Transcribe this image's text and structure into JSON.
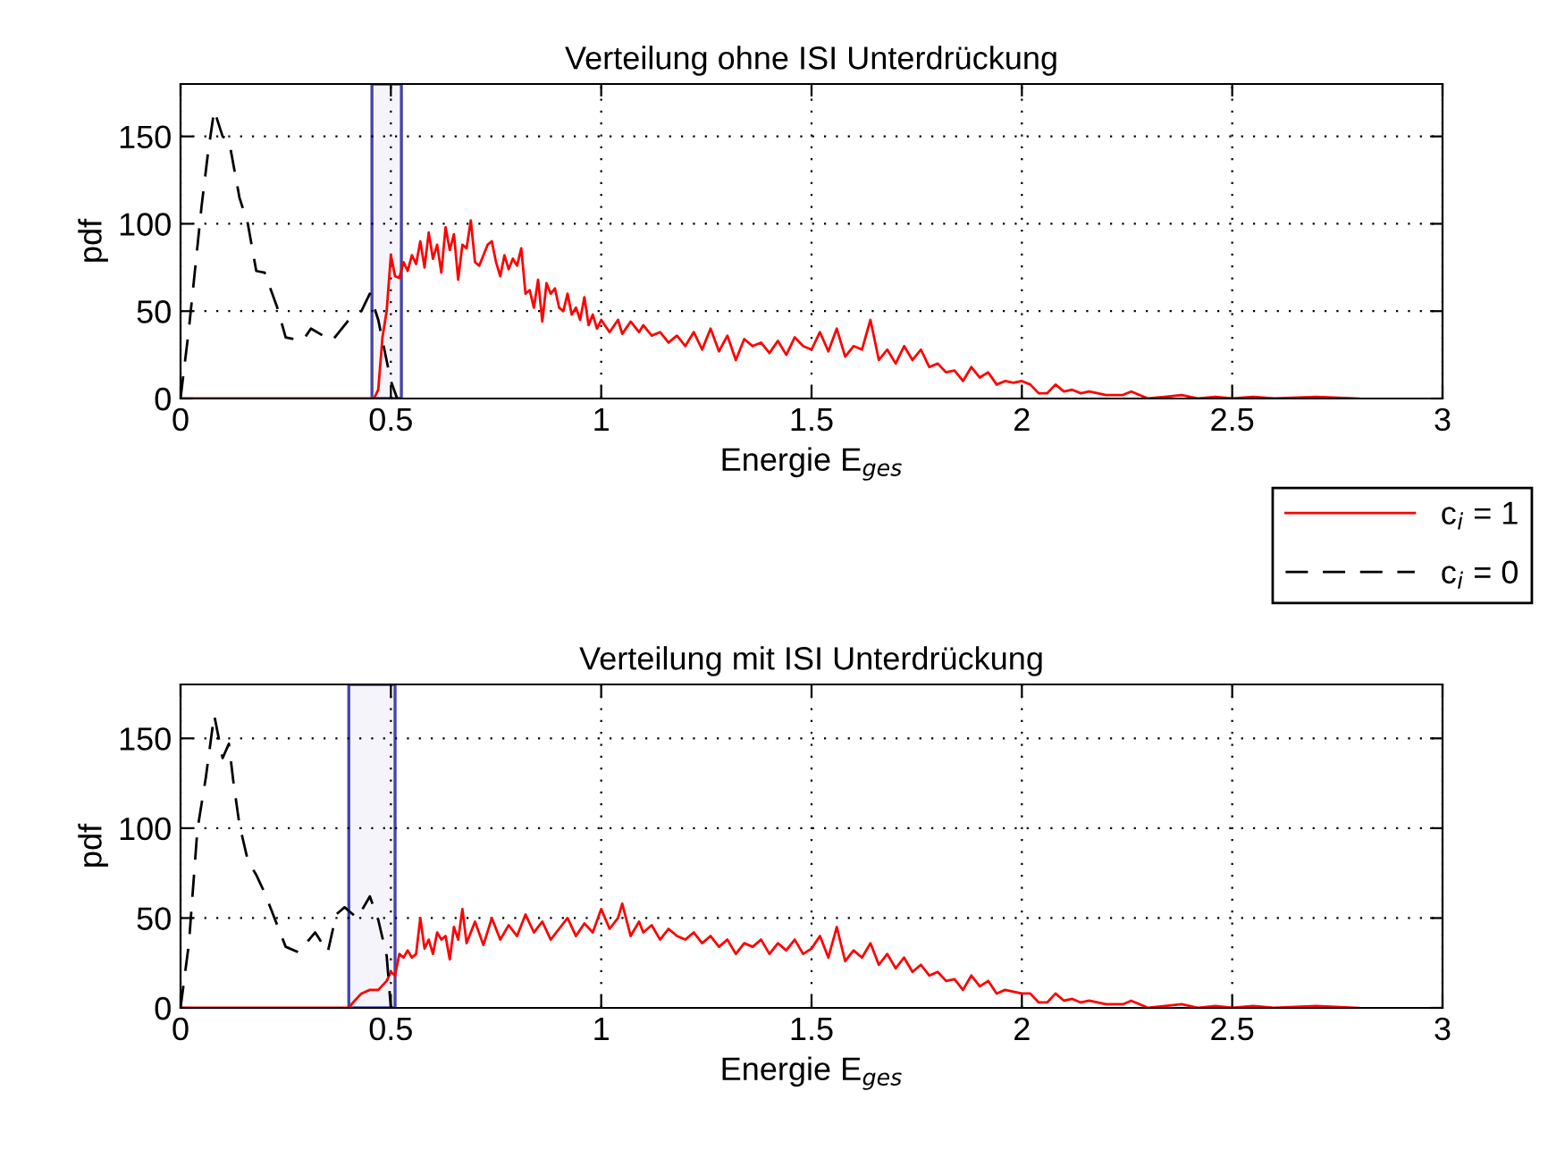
{
  "chart_data": [
    {
      "type": "line",
      "title": "Verteilung ohne ISI Unterdrückung",
      "xlabel": "Energie E$_{ges}$",
      "ylabel": "pdf",
      "xlim": [
        0,
        3
      ],
      "ylim": [
        0,
        180
      ],
      "xticks": [
        0,
        0.5,
        1,
        1.5,
        2,
        2.5,
        3
      ],
      "yticks": [
        0,
        50,
        100,
        150
      ],
      "grid": true,
      "legend": "bottom right",
      "bands": [
        {
          "axis": "x",
          "from": 0.455,
          "to": 0.525,
          "color": "#4444aa"
        }
      ],
      "series": [
        {
          "name": "c$_{i}$ = 1",
          "color": "#ff0000",
          "line_style": "solid",
          "x": [
            0,
            0.45,
            0.46,
            0.47,
            0.48,
            0.49,
            0.5,
            0.51,
            0.52,
            0.53,
            0.54,
            0.55,
            0.56,
            0.57,
            0.58,
            0.59,
            0.6,
            0.61,
            0.62,
            0.63,
            0.64,
            0.65,
            0.66,
            0.67,
            0.68,
            0.69,
            0.7,
            0.71,
            0.72,
            0.73,
            0.74,
            0.75,
            0.76,
            0.77,
            0.78,
            0.79,
            0.8,
            0.81,
            0.82,
            0.83,
            0.84,
            0.85,
            0.86,
            0.87,
            0.88,
            0.89,
            0.9,
            0.91,
            0.92,
            0.93,
            0.94,
            0.95,
            0.96,
            0.97,
            0.98,
            0.99,
            1.0,
            1.02,
            1.04,
            1.05,
            1.07,
            1.09,
            1.1,
            1.12,
            1.14,
            1.16,
            1.18,
            1.2,
            1.22,
            1.24,
            1.26,
            1.28,
            1.3,
            1.32,
            1.34,
            1.36,
            1.38,
            1.4,
            1.42,
            1.44,
            1.46,
            1.48,
            1.5,
            1.52,
            1.54,
            1.56,
            1.58,
            1.6,
            1.62,
            1.64,
            1.66,
            1.68,
            1.7,
            1.72,
            1.74,
            1.76,
            1.78,
            1.8,
            1.82,
            1.84,
            1.86,
            1.88,
            1.9,
            1.92,
            1.94,
            1.96,
            1.98,
            2.0,
            2.02,
            2.04,
            2.06,
            2.08,
            2.1,
            2.12,
            2.14,
            2.16,
            2.2,
            2.24,
            2.26,
            2.3,
            2.34,
            2.38,
            2.42,
            2.46,
            2.5,
            2.55,
            2.6,
            2.7,
            2.8
          ],
          "values": [
            0,
            0,
            0,
            5,
            35,
            50,
            82,
            70,
            69,
            78,
            73,
            82,
            77,
            90,
            75,
            95,
            80,
            88,
            72,
            98,
            85,
            94,
            68,
            88,
            86,
            102,
            78,
            76,
            82,
            88,
            90,
            78,
            70,
            82,
            74,
            80,
            76,
            86,
            60,
            62,
            52,
            68,
            44,
            66,
            60,
            63,
            52,
            50,
            60,
            48,
            52,
            45,
            58,
            42,
            48,
            40,
            45,
            38,
            45,
            37,
            44,
            38,
            42,
            36,
            38,
            32,
            36,
            30,
            38,
            28,
            40,
            27,
            36,
            22,
            34,
            30,
            32,
            26,
            33,
            25,
            35,
            30,
            28,
            38,
            27,
            40,
            24,
            30,
            28,
            45,
            22,
            28,
            20,
            30,
            22,
            28,
            18,
            20,
            15,
            16,
            10,
            18,
            12,
            15,
            8,
            10,
            9,
            10,
            8,
            3,
            3,
            8,
            4,
            5,
            3,
            4,
            2,
            2,
            4,
            0,
            1,
            2,
            0,
            1,
            0,
            1,
            0,
            1,
            0
          ]
        },
        {
          "name": "c$_{i}$ = 0",
          "color": "#000000",
          "line_style": "dashed",
          "x": [
            0,
            0.02,
            0.05,
            0.065,
            0.08,
            0.1,
            0.115,
            0.14,
            0.16,
            0.18,
            0.2,
            0.23,
            0.25,
            0.29,
            0.31,
            0.36,
            0.4,
            0.43,
            0.45,
            0.47,
            0.5,
            0.515
          ],
          "values": [
            0,
            40,
            110,
            140,
            165,
            150,
            148,
            115,
            100,
            73,
            72,
            52,
            35,
            33,
            40,
            33,
            45,
            50,
            60,
            45,
            10,
            0
          ]
        }
      ]
    },
    {
      "type": "line",
      "title": "Verteilung mit ISI Unterdrückung",
      "xlabel": "Energie E$_{ges}$",
      "ylabel": "pdf",
      "xlim": [
        0,
        3
      ],
      "ylim": [
        0,
        180
      ],
      "xticks": [
        0,
        0.5,
        1,
        1.5,
        2,
        2.5,
        3
      ],
      "yticks": [
        0,
        50,
        100,
        150
      ],
      "grid": true,
      "bands": [
        {
          "axis": "x",
          "from": 0.4,
          "to": 0.51,
          "color": "#4444aa"
        }
      ],
      "series": [
        {
          "color": "#ff0000",
          "line_style": "solid",
          "x": [
            0,
            0.4,
            0.41,
            0.43,
            0.45,
            0.47,
            0.49,
            0.5,
            0.51,
            0.52,
            0.53,
            0.54,
            0.55,
            0.56,
            0.57,
            0.58,
            0.59,
            0.6,
            0.61,
            0.62,
            0.63,
            0.64,
            0.65,
            0.66,
            0.67,
            0.68,
            0.7,
            0.72,
            0.74,
            0.76,
            0.78,
            0.8,
            0.82,
            0.84,
            0.86,
            0.88,
            0.9,
            0.92,
            0.94,
            0.96,
            0.98,
            1.0,
            1.02,
            1.04,
            1.05,
            1.07,
            1.09,
            1.1,
            1.12,
            1.14,
            1.16,
            1.18,
            1.2,
            1.22,
            1.24,
            1.26,
            1.28,
            1.3,
            1.32,
            1.34,
            1.36,
            1.38,
            1.4,
            1.42,
            1.44,
            1.46,
            1.48,
            1.5,
            1.52,
            1.54,
            1.56,
            1.58,
            1.6,
            1.62,
            1.64,
            1.66,
            1.68,
            1.7,
            1.72,
            1.74,
            1.76,
            1.78,
            1.8,
            1.82,
            1.84,
            1.86,
            1.88,
            1.9,
            1.92,
            1.94,
            1.96,
            1.98,
            2.0,
            2.02,
            2.04,
            2.06,
            2.08,
            2.1,
            2.12,
            2.14,
            2.16,
            2.2,
            2.24,
            2.26,
            2.3,
            2.34,
            2.38,
            2.42,
            2.46,
            2.5,
            2.55,
            2.6,
            2.7,
            2.8
          ],
          "values": [
            0,
            0,
            3,
            8,
            10,
            10,
            15,
            20,
            18,
            30,
            28,
            32,
            28,
            30,
            50,
            33,
            38,
            30,
            42,
            38,
            40,
            27,
            45,
            38,
            55,
            36,
            48,
            35,
            50,
            38,
            46,
            40,
            52,
            42,
            48,
            38,
            44,
            50,
            40,
            47,
            42,
            55,
            44,
            50,
            58,
            40,
            48,
            42,
            46,
            38,
            44,
            40,
            38,
            42,
            36,
            40,
            34,
            38,
            30,
            36,
            34,
            38,
            30,
            36,
            32,
            38,
            30,
            33,
            40,
            28,
            45,
            26,
            32,
            28,
            36,
            24,
            30,
            22,
            28,
            20,
            24,
            18,
            20,
            15,
            16,
            10,
            18,
            12,
            15,
            8,
            10,
            9,
            8,
            8,
            3,
            3,
            8,
            4,
            5,
            3,
            4,
            2,
            2,
            4,
            0,
            1,
            2,
            0,
            1,
            0,
            1,
            0,
            1,
            0
          ]
        },
        {
          "color": "#000000",
          "line_style": "dashed",
          "x": [
            0,
            0.02,
            0.04,
            0.06,
            0.08,
            0.1,
            0.115,
            0.125,
            0.14,
            0.16,
            0.18,
            0.2,
            0.23,
            0.25,
            0.28,
            0.32,
            0.35,
            0.37,
            0.39,
            0.42,
            0.45,
            0.47,
            0.49,
            0.5
          ],
          "values": [
            0,
            36,
            99,
            128,
            163,
            139,
            147,
            127,
            102,
            82,
            74,
            64,
            46,
            34,
            31,
            42,
            31,
            52,
            56,
            50,
            62,
            49,
            29,
            0
          ]
        }
      ]
    }
  ]
}
